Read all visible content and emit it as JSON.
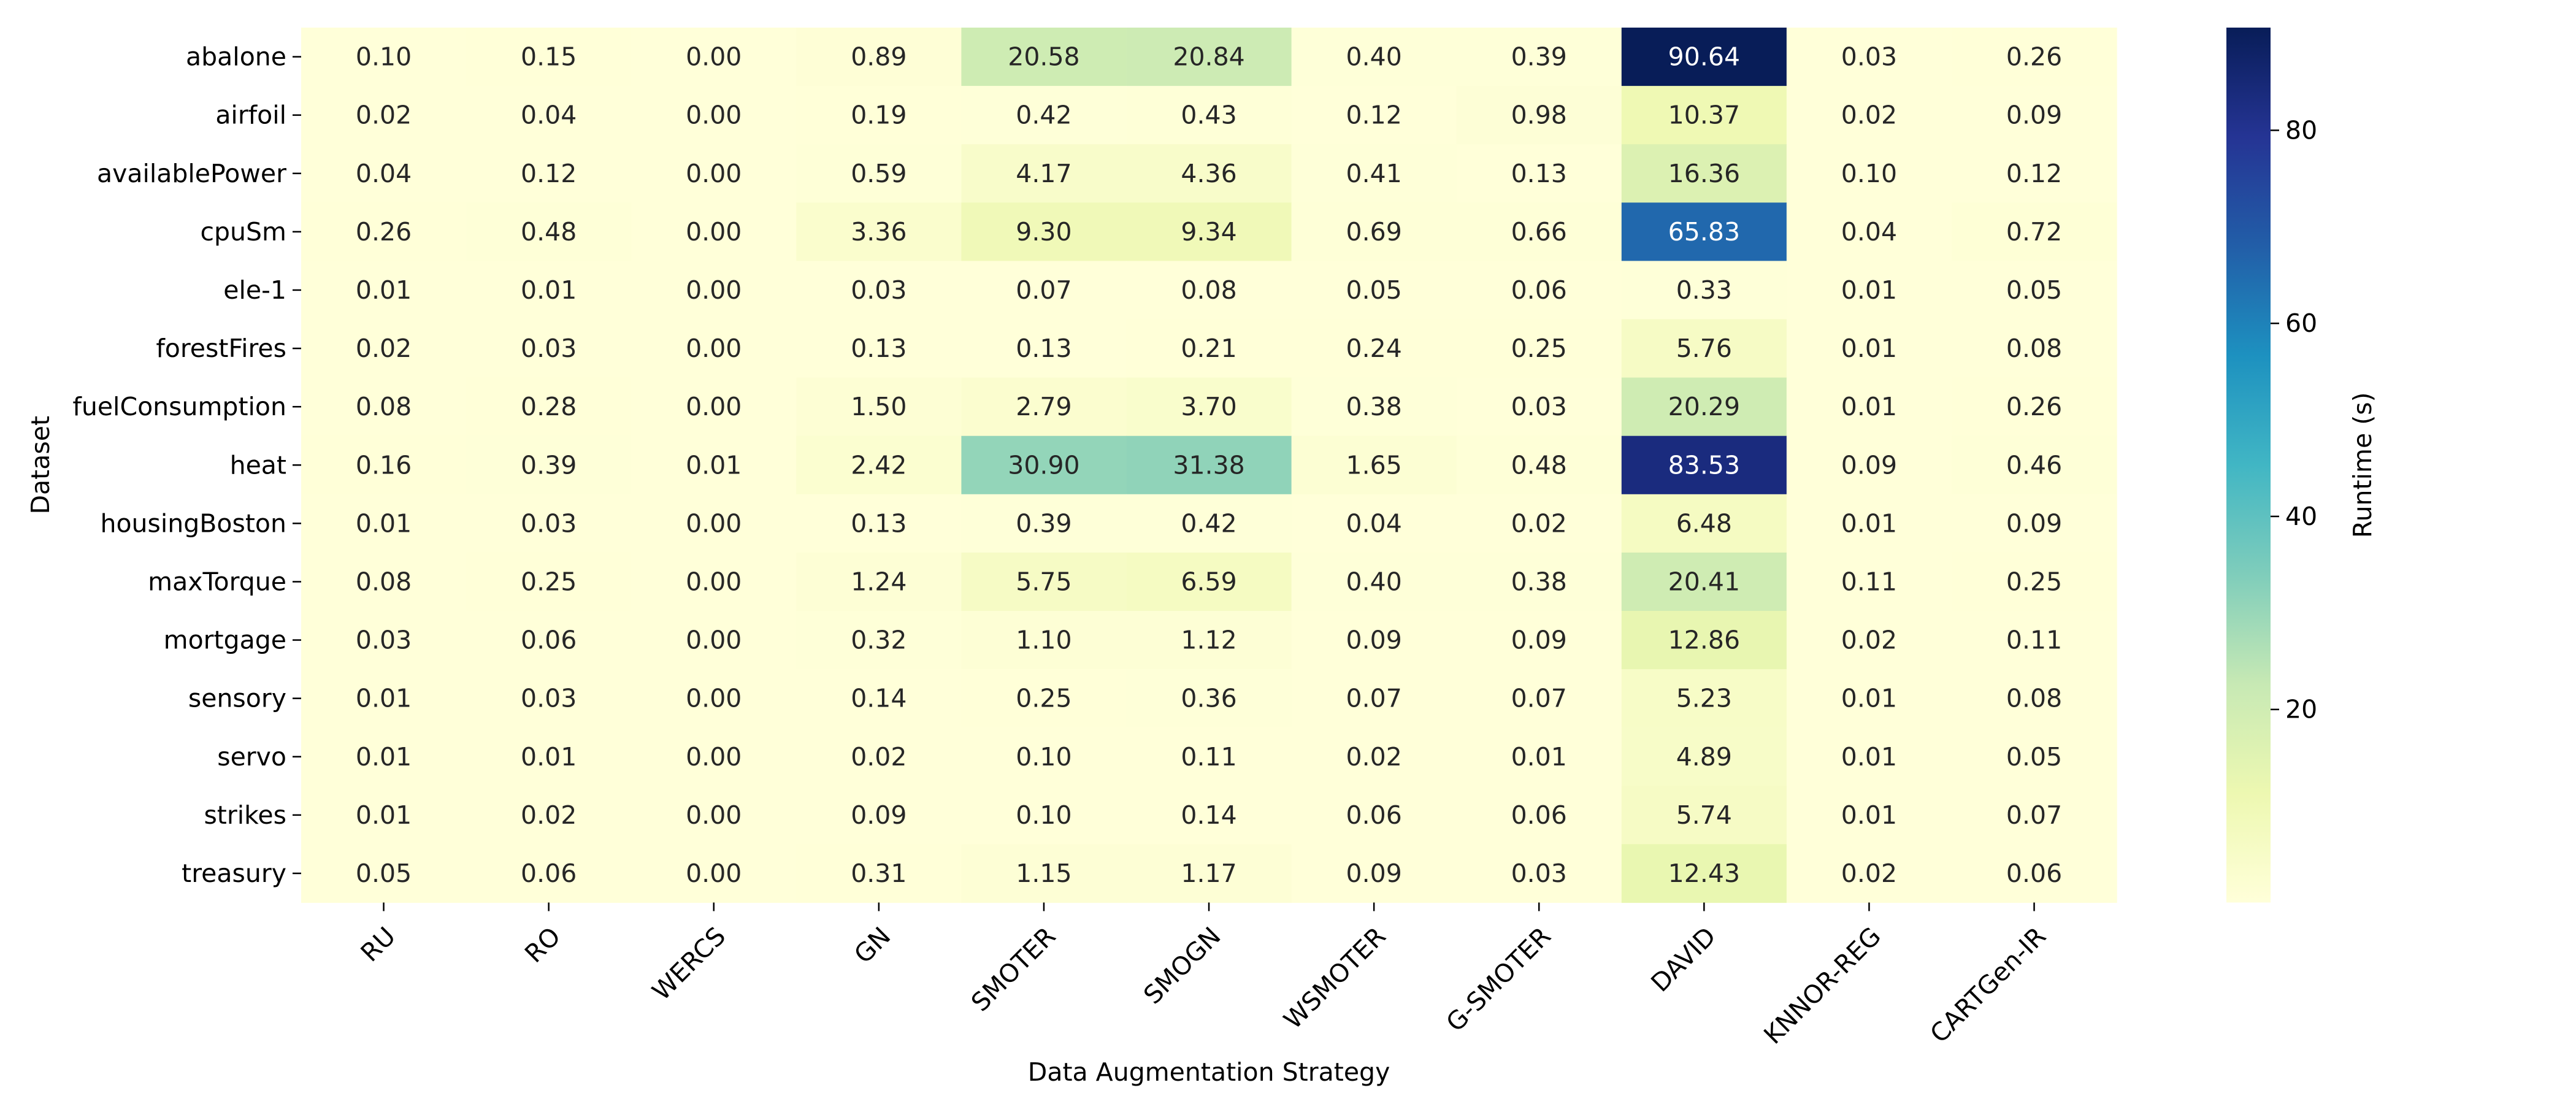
{
  "chart_data": {
    "type": "heatmap",
    "title": "",
    "xlabel": "Data Augmentation Strategy",
    "ylabel": "Dataset",
    "x": [
      "RU",
      "RO",
      "WERCS",
      "GN",
      "SMOTER",
      "SMOGN",
      "WSMOTER",
      "G-SMOTER",
      "DAVID",
      "KNNOR-REG",
      "CARTGen-IR"
    ],
    "y": [
      "abalone",
      "airfoil",
      "availablePower",
      "cpuSm",
      "ele-1",
      "forestFires",
      "fuelConsumption",
      "heat",
      "housingBoston",
      "maxTorque",
      "mortgage",
      "sensory",
      "servo",
      "strikes",
      "treasury"
    ],
    "values": [
      [
        0.1,
        0.15,
        0.0,
        0.89,
        20.58,
        20.84,
        0.4,
        0.39,
        90.64,
        0.03,
        0.26
      ],
      [
        0.02,
        0.04,
        0.0,
        0.19,
        0.42,
        0.43,
        0.12,
        0.98,
        10.37,
        0.02,
        0.09
      ],
      [
        0.04,
        0.12,
        0.0,
        0.59,
        4.17,
        4.36,
        0.41,
        0.13,
        16.36,
        0.1,
        0.12
      ],
      [
        0.26,
        0.48,
        0.0,
        3.36,
        9.3,
        9.34,
        0.69,
        0.66,
        65.83,
        0.04,
        0.72
      ],
      [
        0.01,
        0.01,
        0.0,
        0.03,
        0.07,
        0.08,
        0.05,
        0.06,
        0.33,
        0.01,
        0.05
      ],
      [
        0.02,
        0.03,
        0.0,
        0.13,
        0.13,
        0.21,
        0.24,
        0.25,
        5.76,
        0.01,
        0.08
      ],
      [
        0.08,
        0.28,
        0.0,
        1.5,
        2.79,
        3.7,
        0.38,
        0.03,
        20.29,
        0.01,
        0.26
      ],
      [
        0.16,
        0.39,
        0.01,
        2.42,
        30.9,
        31.38,
        1.65,
        0.48,
        83.53,
        0.09,
        0.46
      ],
      [
        0.01,
        0.03,
        0.0,
        0.13,
        0.39,
        0.42,
        0.04,
        0.02,
        6.48,
        0.01,
        0.09
      ],
      [
        0.08,
        0.25,
        0.0,
        1.24,
        5.75,
        6.59,
        0.4,
        0.38,
        20.41,
        0.11,
        0.25
      ],
      [
        0.03,
        0.06,
        0.0,
        0.32,
        1.1,
        1.12,
        0.09,
        0.09,
        12.86,
        0.02,
        0.11
      ],
      [
        0.01,
        0.03,
        0.0,
        0.14,
        0.25,
        0.36,
        0.07,
        0.07,
        5.23,
        0.01,
        0.08
      ],
      [
        0.01,
        0.01,
        0.0,
        0.02,
        0.1,
        0.11,
        0.02,
        0.01,
        4.89,
        0.01,
        0.05
      ],
      [
        0.01,
        0.02,
        0.0,
        0.09,
        0.1,
        0.14,
        0.06,
        0.06,
        5.74,
        0.01,
        0.07
      ],
      [
        0.05,
        0.06,
        0.0,
        0.31,
        1.15,
        1.17,
        0.09,
        0.03,
        12.43,
        0.02,
        0.06
      ]
    ],
    "value_format": "2 decimals",
    "colormap": "YlGnBu",
    "colormap_stops": [
      "#ffffd9",
      "#edf8b1",
      "#c7e9b4",
      "#7fcdbb",
      "#41b6c4",
      "#1d91c0",
      "#225ea8",
      "#253494",
      "#081d58"
    ],
    "vmin": 0.0,
    "vmax": 90.64,
    "colorbar": {
      "label": "Runtime (s)",
      "ticks": [
        20,
        40,
        60,
        80
      ],
      "placement": "right"
    },
    "annotation_colors": {
      "dark": "#262626",
      "light": "#ffffff"
    },
    "grid": false,
    "legend": "none"
  }
}
